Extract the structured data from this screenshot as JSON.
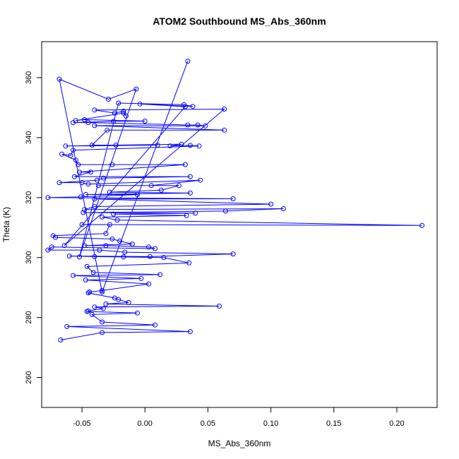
{
  "chart_data": {
    "type": "line",
    "title": "ATOM2 Southbound MS_Abs_360nm",
    "xlabel": "MS_Abs_360nm",
    "ylabel": "Theta (K)",
    "xlim": [
      -0.082,
      0.232
    ],
    "ylim": [
      250,
      372
    ],
    "xticks": [
      "-0.05",
      "0.00",
      "0.05",
      "0.10",
      "0.15",
      "0.20"
    ],
    "xtick_values": [
      -0.05,
      0.0,
      0.05,
      0.1,
      0.15,
      0.2
    ],
    "yticks": [
      "260",
      "280",
      "300",
      "320",
      "340",
      "360"
    ],
    "ytick_values": [
      260,
      280,
      300,
      320,
      340,
      360
    ],
    "grid": false,
    "legend": "none",
    "series": [
      {
        "color": "#0000ff",
        "marker": "open-circle",
        "points": [
          [
            0.034,
            365.5
          ],
          [
            -0.034,
            288.5
          ],
          [
            -0.068,
            359.5
          ],
          [
            -0.029,
            352.8
          ],
          [
            -0.007,
            356.2
          ],
          [
            -0.052,
            300.2
          ],
          [
            -0.021,
            351.5
          ],
          [
            0.031,
            351.0
          ],
          [
            0.038,
            350.4
          ],
          [
            -0.004,
            351.2
          ],
          [
            0.032,
            350.3
          ],
          [
            -0.064,
            304.0
          ],
          [
            0.063,
            349.5
          ],
          [
            -0.04,
            349.2
          ],
          [
            -0.024,
            348.2
          ],
          [
            -0.017,
            348.8
          ],
          [
            -0.015,
            347.2
          ],
          [
            -0.017,
            348.2
          ],
          [
            -0.055,
            345.7
          ],
          [
            -0.048,
            346.0
          ],
          [
            0.0,
            345.5
          ],
          [
            -0.025,
            345.4
          ],
          [
            -0.057,
            345.0
          ],
          [
            -0.045,
            345.0
          ],
          [
            0.034,
            344.2
          ],
          [
            0.042,
            344.2
          ],
          [
            0.048,
            343.9
          ],
          [
            -0.04,
            344.0
          ],
          [
            0.063,
            342.5
          ],
          [
            -0.03,
            342.5
          ],
          [
            -0.042,
            337.5
          ],
          [
            0.01,
            337.5
          ],
          [
            -0.063,
            337.2
          ],
          [
            -0.023,
            337.5
          ],
          [
            0.029,
            337.8
          ],
          [
            0.02,
            337.2
          ],
          [
            0.036,
            337.4
          ],
          [
            0.043,
            337.2
          ],
          [
            -0.057,
            335.8
          ],
          [
            -0.059,
            334.0
          ],
          [
            -0.066,
            334.5
          ],
          [
            -0.055,
            332.5
          ],
          [
            -0.053,
            331.0
          ],
          [
            -0.026,
            331.0
          ],
          [
            0.032,
            331.0
          ],
          [
            -0.052,
            328.5
          ],
          [
            -0.043,
            328.5
          ],
          [
            -0.056,
            327.0
          ],
          [
            0.036,
            327.0
          ],
          [
            -0.033,
            326.5
          ],
          [
            -0.038,
            325.8
          ],
          [
            -0.068,
            325.0
          ],
          [
            -0.05,
            325.0
          ],
          [
            -0.045,
            324.5
          ],
          [
            0.044,
            325.8
          ],
          [
            0.005,
            324.0
          ],
          [
            -0.037,
            324.0
          ],
          [
            0.027,
            324.0
          ],
          [
            0.013,
            322.5
          ],
          [
            -0.028,
            321.8
          ],
          [
            0.036,
            321.5
          ],
          [
            -0.047,
            321.0
          ],
          [
            -0.006,
            321.0
          ],
          [
            -0.051,
            320.2
          ],
          [
            -0.077,
            320.0
          ],
          [
            0.07,
            319.6
          ],
          [
            -0.04,
            319.5
          ],
          [
            0.1,
            317.8
          ],
          [
            -0.04,
            317.0
          ],
          [
            -0.048,
            316.0
          ],
          [
            0.11,
            316.3
          ],
          [
            0.064,
            315.5
          ],
          [
            -0.049,
            315.0
          ],
          [
            0.04,
            314.8
          ],
          [
            -0.025,
            314.5
          ],
          [
            0.033,
            314.0
          ],
          [
            -0.034,
            313.5
          ],
          [
            -0.022,
            312.5
          ],
          [
            0.22,
            310.7
          ],
          [
            -0.05,
            311.0
          ],
          [
            -0.028,
            311.0
          ],
          [
            -0.031,
            308.0
          ],
          [
            -0.073,
            307.3
          ],
          [
            -0.071,
            306.7
          ],
          [
            -0.026,
            306.2
          ],
          [
            -0.02,
            305.5
          ],
          [
            -0.01,
            304.5
          ],
          [
            -0.048,
            304.0
          ],
          [
            -0.031,
            304.0
          ],
          [
            0.003,
            303.5
          ],
          [
            0.008,
            303.0
          ],
          [
            -0.074,
            303.5
          ],
          [
            -0.077,
            302.5
          ],
          [
            -0.036,
            302.5
          ],
          [
            -0.016,
            301.8
          ],
          [
            0.07,
            301.2
          ],
          [
            0.004,
            300.3
          ],
          [
            -0.06,
            300.5
          ],
          [
            -0.04,
            300.3
          ],
          [
            -0.017,
            300.2
          ],
          [
            0.015,
            300.0
          ],
          [
            0.035,
            298.2
          ],
          [
            -0.046,
            297.0
          ],
          [
            -0.041,
            295.0
          ],
          [
            0.012,
            294.3
          ],
          [
            -0.057,
            294.0
          ],
          [
            -0.003,
            293.0
          ],
          [
            -0.047,
            292.5
          ],
          [
            0.003,
            291.2
          ],
          [
            -0.034,
            289.0
          ],
          [
            -0.044,
            288.5
          ],
          [
            -0.045,
            288.2
          ],
          [
            -0.024,
            286.5
          ],
          [
            -0.021,
            286.0
          ],
          [
            -0.013,
            285.0
          ],
          [
            -0.031,
            284.5
          ],
          [
            0.059,
            283.8
          ],
          [
            -0.04,
            283.5
          ],
          [
            -0.033,
            283.0
          ],
          [
            -0.045,
            282.2
          ],
          [
            -0.046,
            282.0
          ],
          [
            -0.006,
            281.5
          ],
          [
            -0.042,
            281.0
          ],
          [
            -0.034,
            278.5
          ],
          [
            0.008,
            277.5
          ],
          [
            -0.062,
            277.0
          ],
          [
            0.036,
            275.3
          ],
          [
            -0.034,
            275.0
          ],
          [
            -0.067,
            272.5
          ]
        ]
      }
    ]
  }
}
